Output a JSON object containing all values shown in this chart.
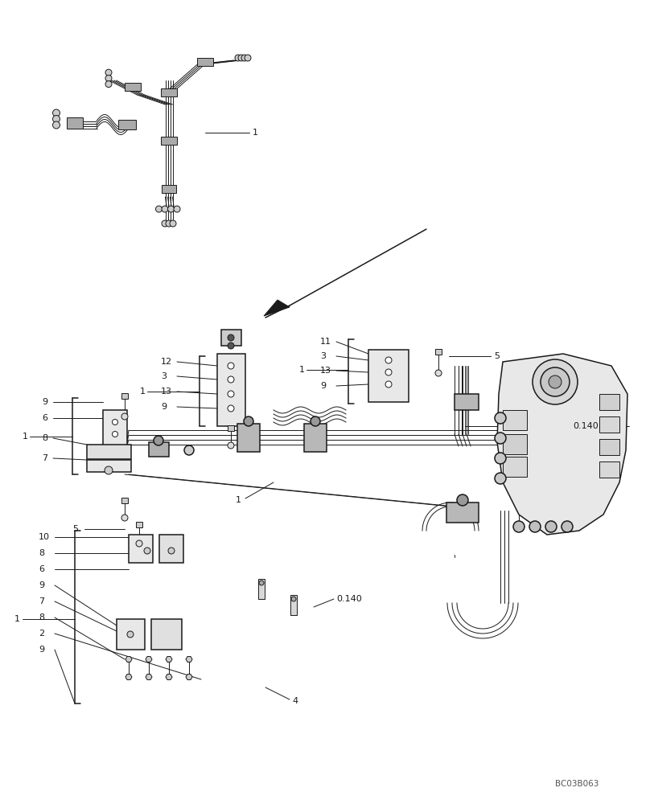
{
  "bg_color": "#ffffff",
  "line_color": "#1a1a1a",
  "fig_width": 8.08,
  "fig_height": 10.0,
  "dpi": 100,
  "watermark": "BC03B063",
  "lw_thin": 0.7,
  "lw_med": 1.1,
  "lw_thick": 1.5,
  "font_size": 8.0
}
